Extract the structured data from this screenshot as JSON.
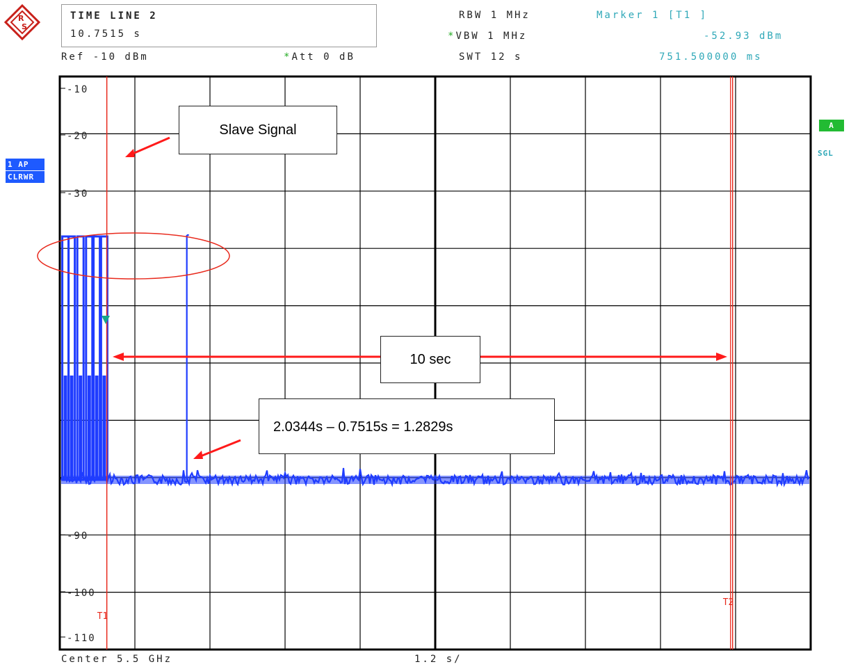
{
  "header": {
    "title": "TIME LINE 2",
    "time_value": "10.7515 s",
    "ref_level": "Ref -10 dBm",
    "att_label": "Att",
    "att_value": "0 dB",
    "rbw": "RBW 1 MHz",
    "vbw": "VBW 1 MHz",
    "swt": "SWT 12 s",
    "marker_label": "Marker 1 [T1 ]",
    "marker_level": "-52.93 dBm",
    "marker_time": "751.500000 ms",
    "star_symbol": "*"
  },
  "side_left": [
    "1 AP",
    "CLRWR"
  ],
  "side_right": {
    "badge": "A",
    "mode": "SGL"
  },
  "footer": {
    "center": "Center 5.5 GHz",
    "span": "1.2 s/"
  },
  "colors": {
    "trace": "#1f3cff",
    "marker": "#e8291c",
    "annotation": "#ff1a1a",
    "grid": "#000000"
  },
  "chart_data": {
    "type": "line",
    "title": "",
    "xlabel": "",
    "ylabel": "",
    "x_unit": "s",
    "y_unit": "dBm",
    "xlim": [
      0,
      12
    ],
    "ylim": [
      -115,
      -5
    ],
    "y_ticks": [
      -10,
      -20,
      -30,
      -40,
      -50,
      -60,
      -70,
      -80,
      -90,
      -100,
      -110
    ],
    "y_tick_labels": [
      "-10",
      "-20",
      "-30",
      "",
      "",
      "",
      "",
      "",
      "-90",
      "-100",
      "-110"
    ],
    "grid": true,
    "series": [
      {
        "noise_floor": -81,
        "bursts_x": [
          0.04,
          0.14,
          0.28,
          0.42,
          0.54,
          0.66
        ],
        "bursts_peak": -41,
        "spike_x": 2.03,
        "spike_peak": -41
      }
    ],
    "markers": [
      {
        "label": "T1",
        "x": 0.7515
      },
      {
        "label": "T2",
        "x": 10.7515
      }
    ],
    "marker_point": {
      "x": 0.7515,
      "y": -52.93
    },
    "annotations": {
      "slave": "Slave Signal",
      "span": "10 sec",
      "calc": "2.0344s – 0.7515s = 1.2829s"
    }
  }
}
